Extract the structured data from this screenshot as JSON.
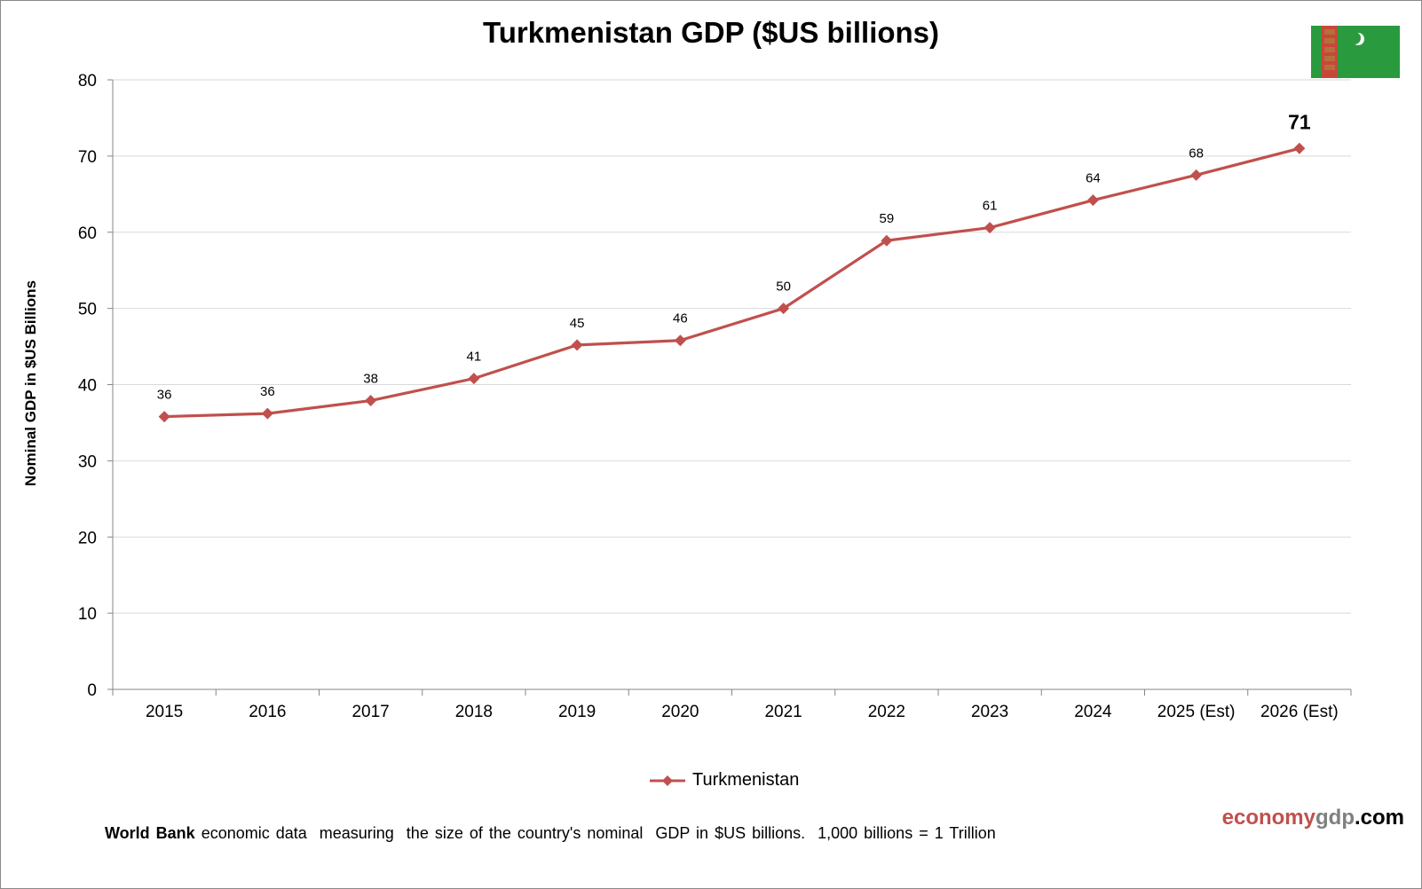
{
  "chart_data": {
    "type": "line",
    "title": "Turkmenistan GDP ($US billions)",
    "xlabel": "",
    "ylabel": "Nominal GDP in $US Billions",
    "categories": [
      "2015",
      "2016",
      "2017",
      "2018",
      "2019",
      "2020",
      "2021",
      "2022",
      "2023",
      "2024",
      "2025 (Est)",
      "2026 (Est)"
    ],
    "series": [
      {
        "name": "Turkmenistan",
        "values": [
          35.8,
          36.2,
          37.9,
          40.8,
          45.2,
          45.8,
          50.0,
          58.9,
          60.6,
          64.2,
          67.5,
          71.0
        ],
        "labels": [
          "36",
          "36",
          "38",
          "41",
          "45",
          "46",
          "50",
          "59",
          "61",
          "64",
          "68",
          "71"
        ],
        "color": "#c0504d",
        "marker": "diamond"
      }
    ],
    "ylim": [
      0,
      80
    ],
    "yticks": [
      "0",
      "10",
      "20",
      "30",
      "40",
      "50",
      "60",
      "70",
      "80"
    ],
    "grid": true,
    "legend": "bottom"
  },
  "flag_icon": "turkmenistan-flag",
  "brand": {
    "part1": "economy",
    "part2": "gdp",
    "part3": ".com",
    "color1": "#c0504d",
    "color2": "#808080",
    "color3": "#000000"
  },
  "footer": {
    "bold": "World Bank",
    "text": " economic data  measuring  the size of the country's nominal  GDP in $US billions.  1,000 billions = 1 Trillion"
  }
}
